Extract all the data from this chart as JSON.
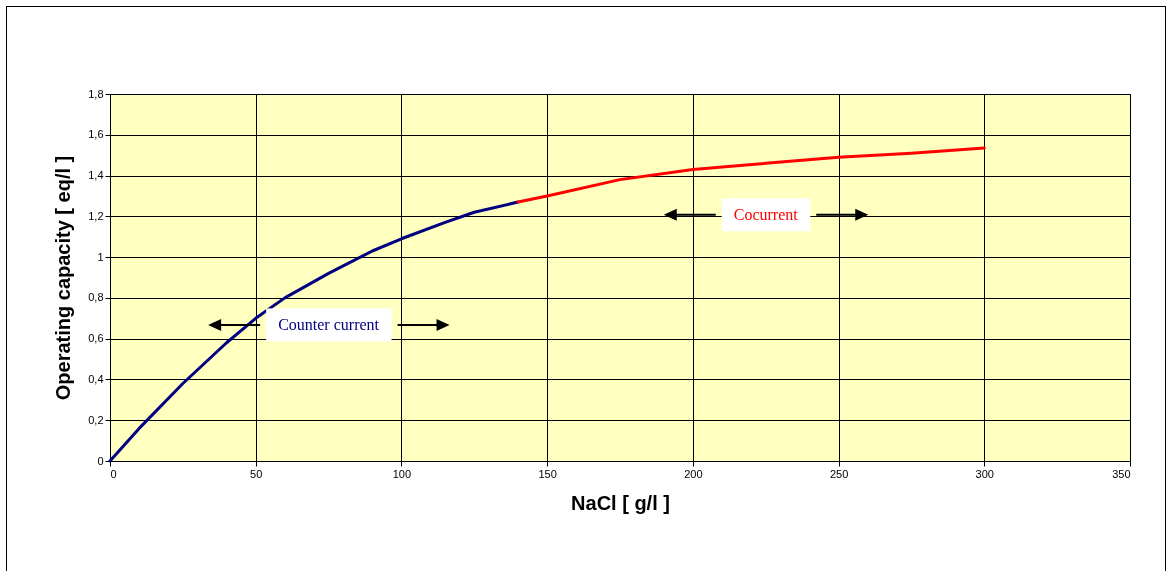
{
  "chart_data": {
    "type": "line",
    "xlabel": "NaCl [ g/l ]",
    "ylabel": "Operating capacity [ eq/l ]",
    "series": [
      {
        "color": "#000080",
        "x": [
          0,
          10,
          25,
          40,
          50,
          60,
          75,
          90,
          100,
          115,
          125,
          140
        ],
        "values": [
          0,
          0.16,
          0.38,
          0.58,
          0.7,
          0.8,
          0.92,
          1.03,
          1.09,
          1.17,
          1.22,
          1.27
        ]
      },
      {
        "color": "#ff0000",
        "x": [
          140,
          150,
          175,
          200,
          225,
          250,
          275,
          300
        ],
        "values": [
          1.27,
          1.3,
          1.38,
          1.43,
          1.46,
          1.49,
          1.51,
          1.535
        ]
      }
    ],
    "xlim": [
      0,
      350
    ],
    "xticks": [
      0,
      50,
      100,
      150,
      200,
      250,
      300,
      350
    ],
    "ylim": [
      0,
      1.8
    ],
    "yticks": [
      0,
      {
        "value": 0.2,
        "label": "0,2"
      },
      {
        "value": 0.4,
        "label": "0,4"
      },
      {
        "value": 0.6,
        "label": "0,6"
      },
      {
        "value": 0.8,
        "label": "0,8"
      },
      1,
      {
        "value": 1.2,
        "label": "1,2"
      },
      {
        "value": 1.4,
        "label": "1,4"
      },
      {
        "value": 1.6,
        "label": "1,6"
      },
      {
        "value": 1.8,
        "label": "1,8"
      }
    ],
    "grid": true,
    "marker": "none",
    "line_style": "solid",
    "annotations": [
      "Counter current",
      "Cocurrent"
    ]
  }
}
